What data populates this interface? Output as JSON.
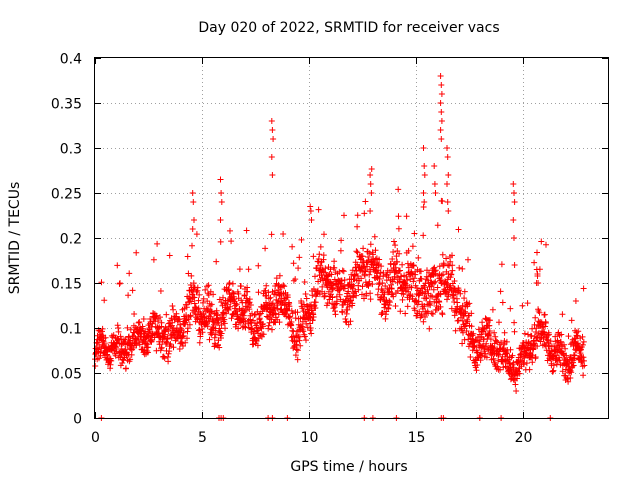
{
  "colors": {
    "series": "#ff0000",
    "grid": "#a0a0a0",
    "axis": "#000000",
    "background": "#ffffff"
  },
  "chart_data": {
    "type": "scatter",
    "title": "Day 020 of 2022, SRMTID for receiver vacs",
    "xlabel": "GPS time / hours",
    "ylabel": "SRMTID / TECUs",
    "xlim": [
      0,
      24
    ],
    "ylim": [
      0,
      0.4
    ],
    "grid": true,
    "marker": "plus",
    "x_ticks": [
      0,
      5,
      10,
      15,
      20
    ],
    "x_tick_labels": [
      "0",
      "5",
      "10",
      "15",
      "20"
    ],
    "y_ticks": [
      0,
      0.05,
      0.1,
      0.15,
      0.2,
      0.25,
      0.3,
      0.35,
      0.4
    ],
    "y_tick_labels": [
      "0",
      "0.05",
      "0.1",
      "0.15",
      "0.2",
      "0.25",
      "0.3",
      "0.35",
      "0.4"
    ],
    "series": [
      {
        "name": "SRMTID",
        "envelope": [
          {
            "x": 0.0,
            "center": 0.065,
            "spread": 0.025
          },
          {
            "x": 1.0,
            "center": 0.075,
            "spread": 0.025
          },
          {
            "x": 1.5,
            "center": 0.095,
            "spread": 0.03
          },
          {
            "x": 2.5,
            "center": 0.08,
            "spread": 0.025
          },
          {
            "x": 3.5,
            "center": 0.105,
            "spread": 0.035
          },
          {
            "x": 4.5,
            "center": 0.11,
            "spread": 0.035
          },
          {
            "x": 5.5,
            "center": 0.12,
            "spread": 0.04
          },
          {
            "x": 7.0,
            "center": 0.115,
            "spread": 0.04
          },
          {
            "x": 8.5,
            "center": 0.12,
            "spread": 0.04
          },
          {
            "x": 9.5,
            "center": 0.105,
            "spread": 0.035
          },
          {
            "x": 10.5,
            "center": 0.14,
            "spread": 0.04
          },
          {
            "x": 12.0,
            "center": 0.15,
            "spread": 0.04
          },
          {
            "x": 13.0,
            "center": 0.16,
            "spread": 0.045
          },
          {
            "x": 14.0,
            "center": 0.155,
            "spread": 0.045
          },
          {
            "x": 15.0,
            "center": 0.13,
            "spread": 0.045
          },
          {
            "x": 16.0,
            "center": 0.16,
            "spread": 0.06
          },
          {
            "x": 17.0,
            "center": 0.12,
            "spread": 0.045
          },
          {
            "x": 18.0,
            "center": 0.09,
            "spread": 0.035
          },
          {
            "x": 19.0,
            "center": 0.06,
            "spread": 0.03
          },
          {
            "x": 20.0,
            "center": 0.075,
            "spread": 0.03
          },
          {
            "x": 21.0,
            "center": 0.085,
            "spread": 0.03
          },
          {
            "x": 22.0,
            "center": 0.075,
            "spread": 0.03
          },
          {
            "x": 22.9,
            "center": 0.06,
            "spread": 0.03
          }
        ],
        "samples_per_hour": 95,
        "x_end": 22.9,
        "spikes": [
          {
            "x": 4.6,
            "y": [
              0.25,
              0.24,
              0.22,
              0.21
            ]
          },
          {
            "x": 5.9,
            "y": [
              0.265,
              0.25,
              0.24,
              0.22
            ]
          },
          {
            "x": 8.3,
            "y": [
              0.33,
              0.32,
              0.31,
              0.29,
              0.27
            ]
          },
          {
            "x": 10.1,
            "y": [
              0.235,
              0.23,
              0.22
            ]
          },
          {
            "x": 12.9,
            "y": [
              0.27,
              0.26,
              0.25,
              0.23
            ]
          },
          {
            "x": 15.4,
            "y": [
              0.3,
              0.28,
              0.27,
              0.25,
              0.24
            ]
          },
          {
            "x": 15.9,
            "y": [
              0.28,
              0.26,
              0.25
            ]
          },
          {
            "x": 16.2,
            "y": [
              0.38,
              0.37,
              0.36,
              0.35,
              0.34,
              0.33,
              0.32,
              0.31
            ]
          },
          {
            "x": 16.5,
            "y": [
              0.3,
              0.29,
              0.27,
              0.26,
              0.24,
              0.23
            ]
          },
          {
            "x": 19.6,
            "y": [
              0.26,
              0.25,
              0.24,
              0.22,
              0.2,
              0.17
            ]
          },
          {
            "x": 20.7,
            "y": [
              0.165,
              0.16,
              0.15
            ]
          }
        ],
        "zero_points": [
          0.3,
          5.8,
          5.9,
          6.0,
          8.1,
          8.3,
          9.0,
          12.6,
          13.0,
          14.1,
          16.2,
          16.3,
          18.0,
          19.0,
          21.3
        ]
      }
    ]
  }
}
